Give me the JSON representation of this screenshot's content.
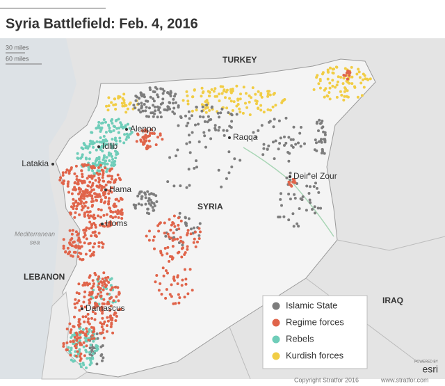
{
  "title": "Syria Battlefield: Feb. 4, 2016",
  "scale": [
    "30 miles",
    "60 miles"
  ],
  "countries": [
    "TURKEY",
    "SYRIA",
    "LEBANON",
    "IRAQ"
  ],
  "sea": [
    "Mediterranean",
    "sea"
  ],
  "cities": [
    "Aleppo",
    "Idlib",
    "Latakia",
    "Raqqa",
    "Deir el Zour",
    "Hama",
    "Homs",
    "Damascus"
  ],
  "legend": [
    {
      "label": "Islamic State",
      "color": "#7d7d7d"
    },
    {
      "label": "Regime forces",
      "color": "#e0644a"
    },
    {
      "label": "Rebels",
      "color": "#6fcdb9"
    },
    {
      "label": "Kurdish forces",
      "color": "#f1cd45"
    }
  ],
  "powered": "POWERED BY",
  "esri": "esri",
  "credit": "Copyright Stratfor 2016",
  "website": "www.stratfor.com"
}
